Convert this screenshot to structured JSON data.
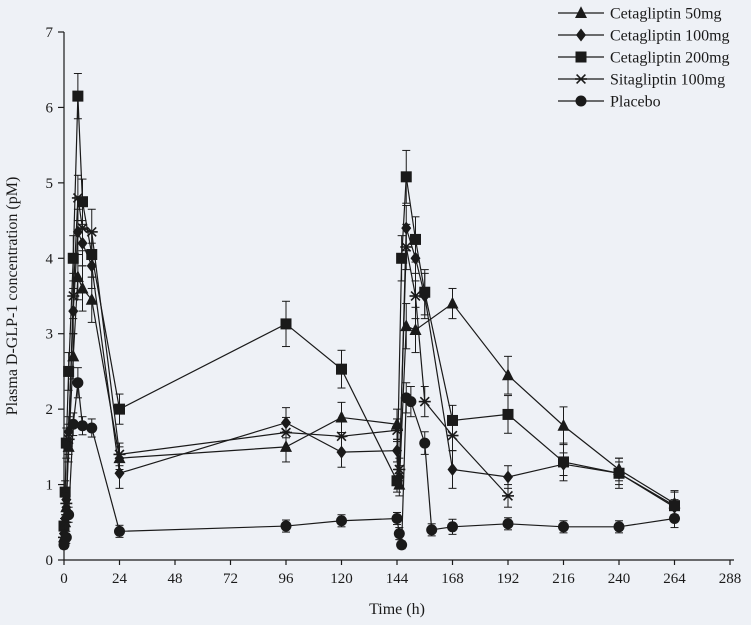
{
  "page": {
    "background_color": "#eef1f6",
    "ink_color": "#1a1a1a"
  },
  "chart_data": {
    "type": "line",
    "title": "",
    "xlabel": "Time (h)",
    "ylabel": "Plasma D-GLP-1 concentration (pM)",
    "xlim": [
      0,
      288
    ],
    "ylim": [
      0,
      7
    ],
    "x_ticks": [
      0,
      24,
      48,
      72,
      96,
      120,
      144,
      168,
      192,
      216,
      240,
      264,
      288
    ],
    "y_ticks": [
      0,
      1,
      2,
      3,
      4,
      5,
      6,
      7
    ],
    "grid": false,
    "legend_position": "top-right",
    "error_bars": true,
    "series": [
      {
        "name": "Cetagliptin 50mg",
        "marker": "triangle",
        "points": [
          [
            0,
            0.3,
            0.1
          ],
          [
            0.5,
            0.5,
            0.1
          ],
          [
            1,
            0.7,
            0.15
          ],
          [
            2,
            1.5,
            0.2
          ],
          [
            4,
            2.7,
            0.3
          ],
          [
            6,
            3.75,
            0.3
          ],
          [
            8,
            3.6,
            0.3
          ],
          [
            12,
            3.45,
            0.3
          ],
          [
            24,
            1.35,
            0.15
          ],
          [
            96,
            1.5,
            0.2
          ],
          [
            120,
            1.89,
            0.2
          ],
          [
            144,
            1.8,
            0.2
          ],
          [
            145,
            1.0,
            0.15
          ],
          [
            148,
            3.1,
            0.3
          ],
          [
            152,
            3.05,
            0.3
          ],
          [
            168,
            3.4,
            0.2
          ],
          [
            192,
            2.45,
            0.25
          ],
          [
            216,
            1.78,
            0.25
          ],
          [
            240,
            1.2,
            0.15
          ],
          [
            264,
            0.75,
            0.15
          ]
        ]
      },
      {
        "name": "Cetagliptin 100mg",
        "marker": "diamond",
        "points": [
          [
            0,
            0.35,
            0.1
          ],
          [
            0.5,
            0.55,
            0.1
          ],
          [
            1,
            0.8,
            0.15
          ],
          [
            2,
            1.7,
            0.2
          ],
          [
            4,
            3.3,
            0.3
          ],
          [
            6,
            4.35,
            0.3
          ],
          [
            8,
            4.2,
            0.3
          ],
          [
            12,
            3.9,
            0.3
          ],
          [
            24,
            1.15,
            0.2
          ],
          [
            96,
            1.82,
            0.2
          ],
          [
            120,
            1.43,
            0.2
          ],
          [
            144,
            1.45,
            0.15
          ],
          [
            145,
            1.1,
            0.15
          ],
          [
            148,
            4.4,
            0.3
          ],
          [
            152,
            4.0,
            0.3
          ],
          [
            156,
            3.5,
            0.3
          ],
          [
            168,
            1.2,
            0.25
          ],
          [
            192,
            1.1,
            0.15
          ],
          [
            216,
            1.27,
            0.15
          ],
          [
            240,
            1.15,
            0.15
          ],
          [
            264,
            0.7,
            0.1
          ]
        ]
      },
      {
        "name": "Cetagliptin 200mg",
        "marker": "square",
        "points": [
          [
            0,
            0.45,
            0.1
          ],
          [
            0.5,
            0.9,
            0.15
          ],
          [
            1,
            1.55,
            0.2
          ],
          [
            2,
            2.5,
            0.25
          ],
          [
            4,
            4.0,
            0.3
          ],
          [
            6,
            6.15,
            0.3
          ],
          [
            8,
            4.75,
            0.3
          ],
          [
            12,
            4.05,
            0.3
          ],
          [
            24,
            2.0,
            0.2
          ],
          [
            96,
            3.13,
            0.3
          ],
          [
            120,
            2.53,
            0.25
          ],
          [
            144,
            1.05,
            0.15
          ],
          [
            146,
            4.0,
            0.3
          ],
          [
            148,
            5.08,
            0.35
          ],
          [
            152,
            4.25,
            0.3
          ],
          [
            156,
            3.55,
            0.3
          ],
          [
            168,
            1.85,
            0.2
          ],
          [
            192,
            1.93,
            0.25
          ],
          [
            216,
            1.3,
            0.25
          ],
          [
            240,
            1.15,
            0.2
          ],
          [
            264,
            0.72,
            0.2
          ]
        ]
      },
      {
        "name": "Sitagliptin 100mg",
        "marker": "asterisk",
        "points": [
          [
            0,
            0.3,
            0.1
          ],
          [
            0.5,
            0.5,
            0.1
          ],
          [
            1,
            0.75,
            0.15
          ],
          [
            2,
            1.6,
            0.2
          ],
          [
            4,
            3.5,
            0.3
          ],
          [
            6,
            4.8,
            0.3
          ],
          [
            8,
            4.4,
            0.3
          ],
          [
            12,
            4.35,
            0.3
          ],
          [
            24,
            1.4,
            0.15
          ],
          [
            96,
            1.69,
            0.2
          ],
          [
            120,
            1.64,
            0.2
          ],
          [
            144,
            1.72,
            0.15
          ],
          [
            145,
            1.2,
            0.15
          ],
          [
            148,
            4.15,
            0.3
          ],
          [
            152,
            3.5,
            0.3
          ],
          [
            156,
            2.1,
            0.2
          ],
          [
            168,
            1.65,
            0.2
          ],
          [
            192,
            0.85,
            0.15
          ]
        ]
      },
      {
        "name": "Placebo",
        "marker": "circle",
        "points": [
          [
            0,
            0.2,
            0.05
          ],
          [
            1,
            0.3,
            0.08
          ],
          [
            2,
            0.6,
            0.1
          ],
          [
            4,
            1.8,
            0.15
          ],
          [
            6,
            2.35,
            0.2
          ],
          [
            8,
            1.78,
            0.12
          ],
          [
            12,
            1.75,
            0.12
          ],
          [
            24,
            0.38,
            0.08
          ],
          [
            96,
            0.45,
            0.08
          ],
          [
            120,
            0.52,
            0.08
          ],
          [
            144,
            0.55,
            0.08
          ],
          [
            145,
            0.35,
            0.08
          ],
          [
            146,
            0.2,
            0.05
          ],
          [
            148,
            2.15,
            0.2
          ],
          [
            150,
            2.1,
            0.2
          ],
          [
            156,
            1.55,
            0.15
          ],
          [
            159,
            0.4,
            0.08
          ],
          [
            168,
            0.44,
            0.1
          ],
          [
            192,
            0.48,
            0.08
          ],
          [
            216,
            0.44,
            0.08
          ],
          [
            240,
            0.44,
            0.08
          ],
          [
            264,
            0.55,
            0.12
          ]
        ]
      }
    ]
  }
}
